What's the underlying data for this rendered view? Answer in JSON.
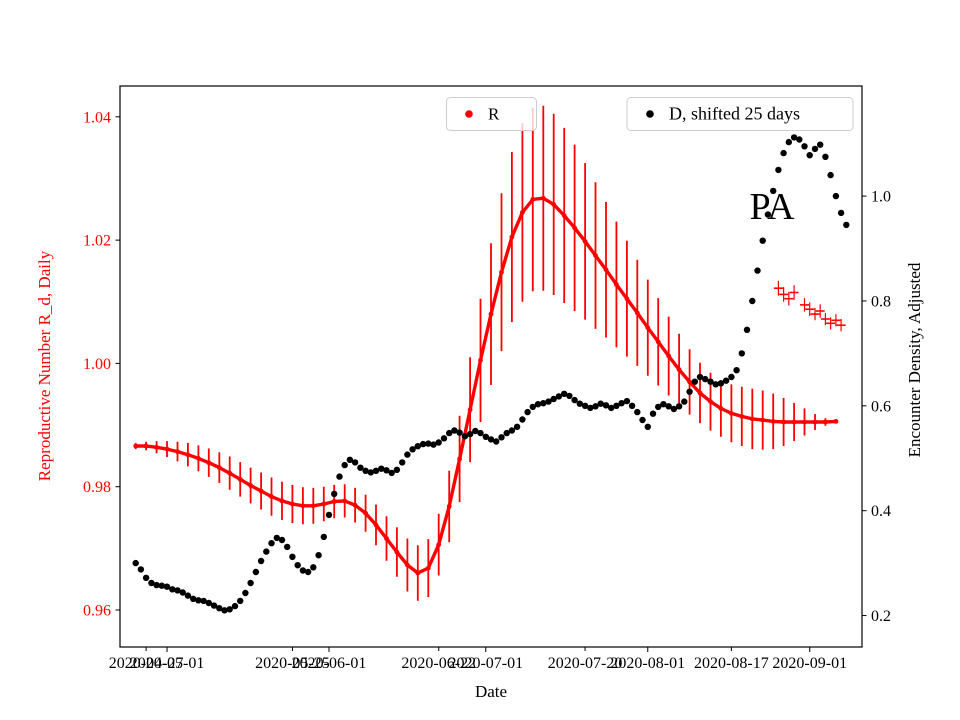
{
  "chart_data": {
    "type": "scatter",
    "title": "",
    "xlabel": "Date",
    "ylabel_left": "Reproductive Number R_d, Daily",
    "ylabel_right": "Encounter Density, Adjusted",
    "annotations": [
      {
        "text": "PA",
        "date": "2020-08-25",
        "value_left": 1.025
      }
    ],
    "x_range": [
      "2020-04-22",
      "2020-09-11"
    ],
    "x_major_ticks": [
      "2020-05-01",
      "2020-06-01",
      "2020-07-01",
      "2020-08-01",
      "2020-09-01"
    ],
    "x_minor_ticks": [
      "2020-04-27",
      "2020-05-25",
      "2020-06-22",
      "2020-07-20",
      "2020-08-17"
    ],
    "ylim_left": [
      0.954,
      1.045
    ],
    "yticks_left": [
      "0.96",
      "0.98",
      "1.00",
      "1.02",
      "1.04"
    ],
    "ylim_right": [
      0.14,
      1.21
    ],
    "yticks_right": [
      "0.2",
      "0.4",
      "0.6",
      "0.8",
      "1.0"
    ],
    "grid": false,
    "colors": {
      "r": "#ff0000",
      "d": "#000000",
      "axis": "#000000",
      "legend_edge": "#cccccc"
    },
    "legend": [
      {
        "label": "R",
        "color": "#ff0000",
        "position": "upper-center"
      },
      {
        "label": "D, shifted 25 days",
        "color": "#000000",
        "position": "upper-right"
      }
    ],
    "series": [
      {
        "name": "R",
        "axis": "left",
        "color": "#ff0000",
        "marker": "circle",
        "marker_size": 2.4,
        "connect": true,
        "line_width": 3.4,
        "error_bars": true,
        "error_width": 1.8,
        "start": "2020-04-25",
        "step_days": 2,
        "values": [
          [
            0.9866,
            0.0005
          ],
          [
            0.9866,
            0.0007
          ],
          [
            0.9864,
            0.001
          ],
          [
            0.9861,
            0.0013
          ],
          [
            0.9857,
            0.0016
          ],
          [
            0.9852,
            0.0019
          ],
          [
            0.9846,
            0.0021
          ],
          [
            0.9839,
            0.0023
          ],
          [
            0.9831,
            0.0025
          ],
          [
            0.9822,
            0.0027
          ],
          [
            0.9812,
            0.0028
          ],
          [
            0.9802,
            0.0029
          ],
          [
            0.9793,
            0.003
          ],
          [
            0.9784,
            0.0031
          ],
          [
            0.9777,
            0.0031
          ],
          [
            0.9772,
            0.0031
          ],
          [
            0.9769,
            0.003
          ],
          [
            0.9769,
            0.0029
          ],
          [
            0.9772,
            0.0028
          ],
          [
            0.9776,
            0.0027
          ],
          [
            0.9777,
            0.0027
          ],
          [
            0.977,
            0.0028
          ],
          [
            0.9757,
            0.003
          ],
          [
            0.9738,
            0.0033
          ],
          [
            0.9716,
            0.0036
          ],
          [
            0.9694,
            0.004
          ],
          [
            0.9673,
            0.0043
          ],
          [
            0.966,
            0.0045
          ],
          [
            0.9668,
            0.0047
          ],
          [
            0.9706,
            0.005
          ],
          [
            0.9768,
            0.0058
          ],
          [
            0.9845,
            0.007
          ],
          [
            0.9925,
            0.0085
          ],
          [
            1.0005,
            0.01
          ],
          [
            1.008,
            0.0115
          ],
          [
            1.0148,
            0.0128
          ],
          [
            1.0205,
            0.0138
          ],
          [
            1.0245,
            0.0145
          ],
          [
            1.0266,
            0.0149
          ],
          [
            1.0268,
            0.015
          ],
          [
            1.0258,
            0.0147
          ],
          [
            1.024,
            0.0142
          ],
          [
            1.022,
            0.0135
          ],
          [
            1.0198,
            0.0127
          ],
          [
            1.0175,
            0.0119
          ],
          [
            1.0152,
            0.011
          ],
          [
            1.0128,
            0.0102
          ],
          [
            1.0105,
            0.0094
          ],
          [
            1.0082,
            0.0086
          ],
          [
            1.0058,
            0.0078
          ],
          [
            1.0035,
            0.0071
          ],
          [
            1.0012,
            0.0064
          ],
          [
            0.999,
            0.0058
          ],
          [
            0.997,
            0.0053
          ],
          [
            0.9952,
            0.0049
          ],
          [
            0.9938,
            0.0047
          ],
          [
            0.9927,
            0.0046
          ],
          [
            0.9919,
            0.0047
          ],
          [
            0.9914,
            0.0048
          ],
          [
            0.991,
            0.0049
          ],
          [
            0.9908,
            0.0048
          ],
          [
            0.9906,
            0.0045
          ],
          [
            0.9905,
            0.0039
          ],
          [
            0.9905,
            0.0031
          ],
          [
            0.9905,
            0.0022
          ],
          [
            0.9905,
            0.0013
          ],
          [
            0.9905,
            0.0006
          ],
          [
            0.9906,
            0.0003
          ]
        ]
      },
      {
        "name": "R-plus",
        "axis": "left",
        "color": "#ff0000",
        "marker": "plus",
        "marker_size": 4.5,
        "connect": false,
        "error_bars": true,
        "error_width": 1.2,
        "points": [
          [
            "2020-08-26",
            1.0122,
            0.0012
          ],
          [
            "2020-08-27",
            1.0112,
            0.0012
          ],
          [
            "2020-08-28",
            1.0105,
            0.0011
          ],
          [
            "2020-08-29",
            1.0115,
            0.0012
          ],
          [
            "2020-08-31",
            1.0095,
            0.0011
          ],
          [
            "2020-09-01",
            1.0088,
            0.0011
          ],
          [
            "2020-09-02",
            1.008,
            0.001
          ],
          [
            "2020-09-03",
            1.0085,
            0.0011
          ],
          [
            "2020-09-04",
            1.0072,
            0.001
          ],
          [
            "2020-09-05",
            1.0065,
            0.001
          ],
          [
            "2020-09-06",
            1.007,
            0.001
          ],
          [
            "2020-09-07",
            1.0062,
            0.001
          ]
        ]
      },
      {
        "name": "D-shifted-25-days",
        "axis": "right",
        "color": "#000000",
        "marker": "circle",
        "marker_size": 3.2,
        "connect": false,
        "error_bars": false,
        "start": "2020-04-25",
        "step_days": 1,
        "values": [
          0.3,
          0.288,
          0.272,
          0.262,
          0.258,
          0.257,
          0.255,
          0.25,
          0.248,
          0.244,
          0.238,
          0.232,
          0.229,
          0.228,
          0.224,
          0.219,
          0.214,
          0.21,
          0.212,
          0.218,
          0.228,
          0.243,
          0.262,
          0.283,
          0.304,
          0.322,
          0.338,
          0.348,
          0.344,
          0.331,
          0.312,
          0.296,
          0.286,
          0.283,
          0.292,
          0.315,
          0.35,
          0.392,
          0.432,
          0.465,
          0.487,
          0.497,
          0.492,
          0.482,
          0.476,
          0.473,
          0.476,
          0.48,
          0.477,
          0.472,
          0.478,
          0.492,
          0.507,
          0.517,
          0.523,
          0.527,
          0.528,
          0.526,
          0.53,
          0.538,
          0.548,
          0.553,
          0.549,
          0.542,
          0.546,
          0.552,
          0.548,
          0.541,
          0.536,
          0.532,
          0.54,
          0.548,
          0.553,
          0.56,
          0.574,
          0.588,
          0.598,
          0.603,
          0.605,
          0.608,
          0.613,
          0.618,
          0.623,
          0.619,
          0.611,
          0.604,
          0.6,
          0.596,
          0.599,
          0.604,
          0.601,
          0.596,
          0.6,
          0.605,
          0.609,
          0.6,
          0.588,
          0.573,
          0.56,
          0.585,
          0.598,
          0.603,
          0.599,
          0.594,
          0.599,
          0.608,
          0.627,
          0.646,
          0.655,
          0.651,
          0.646,
          0.641,
          0.643,
          0.648,
          0.655,
          0.668,
          0.7,
          0.745,
          0.8,
          0.858,
          0.915,
          0.965,
          1.01,
          1.05,
          1.082,
          1.103,
          1.112,
          1.108,
          1.095,
          1.078,
          1.09,
          1.098,
          1.075,
          1.04,
          1.0,
          0.968,
          0.945
        ]
      }
    ]
  }
}
